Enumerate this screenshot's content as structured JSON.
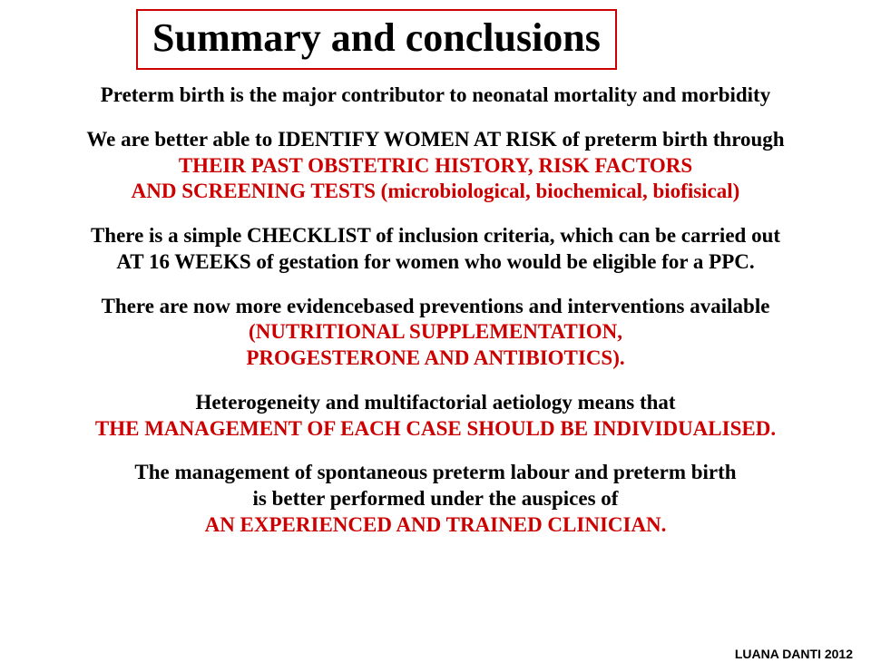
{
  "title": "Summary and conclusions",
  "colors": {
    "border": "#cc0000",
    "black": "#000000",
    "red": "#cc0000",
    "bg": "#ffffff"
  },
  "typography": {
    "title_fontsize": 44,
    "body_fontsize": 23,
    "footer_fontsize": 14,
    "family": "Georgia, Times New Roman, serif"
  },
  "paragraphs": [
    {
      "spans": [
        {
          "text": "Preterm birth is the major contributor to neonatal mortality and morbidity",
          "cls": "black"
        }
      ]
    },
    {
      "spans": [
        {
          "text": "We are better able to IDENTIFY WOMEN AT RISK of preterm birth through",
          "cls": "black"
        },
        {
          "text": "THEIR PAST OBSTETRIC HISTORY, RISK FACTORS",
          "cls": "red"
        },
        {
          "text": "AND SCREENING TESTS (microbiological, biochemical, biofisical)",
          "cls": "red"
        }
      ],
      "multiline": true
    },
    {
      "spans": [
        {
          "text": "There is a simple CHECKLIST of inclusion criteria, which can be carried out",
          "cls": "black"
        },
        {
          "text": " AT 16 WEEKS of gestation for women who would be eligible for a PPC.",
          "cls": "black"
        }
      ],
      "multiline": true
    },
    {
      "spans": [
        {
          "text": "There are now more evidencebased preventions and interventions available",
          "cls": "black"
        },
        {
          "text": "(NUTRITIONAL SUPPLEMENTATION,",
          "cls": "red"
        },
        {
          "text": "PROGESTERONE AND ANTIBIOTICS).",
          "cls": "red"
        }
      ],
      "multiline": true
    },
    {
      "spans": [
        {
          "text": "Heterogeneity and multifactorial aetiology means that",
          "cls": "black"
        },
        {
          "text": "THE MANAGEMENT OF EACH CASE SHOULD BE INDIVIDUALISED.",
          "cls": "red"
        }
      ],
      "multiline": true
    },
    {
      "spans": [
        {
          "text": "The management of spontaneous preterm labour and preterm birth",
          "cls": "black"
        },
        {
          "text": " is better performed under the auspices of",
          "cls": "black"
        },
        {
          "text": "AN EXPERIENCED AND TRAINED CLINICIAN.",
          "cls": "red"
        }
      ],
      "multiline": true
    }
  ],
  "footer": "LUANA DANTI 2012"
}
